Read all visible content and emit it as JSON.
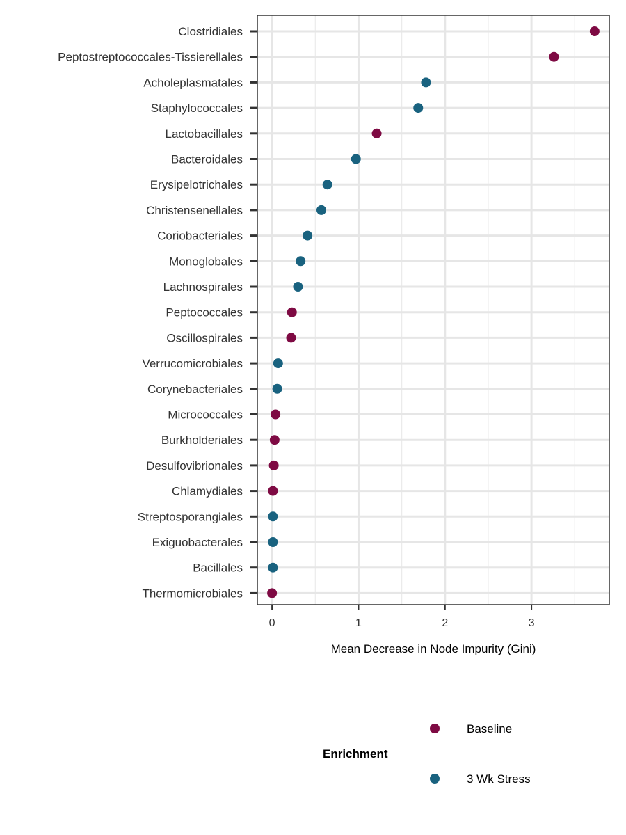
{
  "chart_data": {
    "type": "scatter",
    "orientation": "horizontal-dot",
    "categories": [
      "Clostridiales",
      "Peptostreptococcales-Tissierellales",
      "Acholeplasmatales",
      "Staphylococcales",
      "Lactobacillales",
      "Bacteroidales",
      "Erysipelotrichales",
      "Christensenellales",
      "Coriobacteriales",
      "Monoglobales",
      "Lachnospirales",
      "Peptococcales",
      "Oscillospirales",
      "Verrucomicrobiales",
      "Corynebacteriales",
      "Micrococcales",
      "Burkholderiales",
      "Desulfovibrionales",
      "Chlamydiales",
      "Streptosporangiales",
      "Exiguobacterales",
      "Bacillales",
      "Thermomicrobiales"
    ],
    "values": [
      3.73,
      3.26,
      1.78,
      1.69,
      1.21,
      0.97,
      0.64,
      0.57,
      0.41,
      0.33,
      0.3,
      0.23,
      0.22,
      0.07,
      0.06,
      0.04,
      0.03,
      0.02,
      0.01,
      0.01,
      0.01,
      0.01,
      0.0
    ],
    "groups": [
      "Baseline",
      "Baseline",
      "3 Wk Stress",
      "3 Wk Stress",
      "Baseline",
      "3 Wk Stress",
      "3 Wk Stress",
      "3 Wk Stress",
      "3 Wk Stress",
      "3 Wk Stress",
      "3 Wk Stress",
      "Baseline",
      "Baseline",
      "3 Wk Stress",
      "3 Wk Stress",
      "Baseline",
      "Baseline",
      "Baseline",
      "Baseline",
      "3 Wk Stress",
      "3 Wk Stress",
      "3 Wk Stress",
      "Baseline"
    ],
    "title": "",
    "xlabel": "Mean Decrease in Node Impurity (Gini)",
    "ylabel": "",
    "xlim": [
      -0.17,
      3.9
    ],
    "xticks": [
      "0",
      "1",
      "2",
      "3"
    ],
    "grid": true,
    "legend": {
      "title": "Enrichment",
      "position": "bottom",
      "entries": [
        {
          "name": "Baseline",
          "color": "#7e0a43"
        },
        {
          "name": "3 Wk Stress",
          "color": "#19627f"
        }
      ]
    }
  }
}
